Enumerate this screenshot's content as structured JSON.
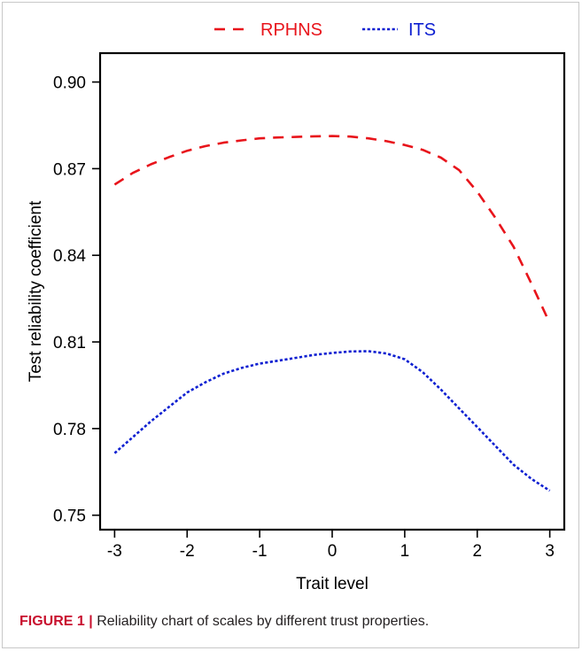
{
  "chart_data": {
    "type": "line",
    "title": "",
    "xlabel": "Trait level",
    "ylabel": "Test reliability coefficient",
    "xlim": [
      -3.2,
      3.2
    ],
    "ylim": [
      0.745,
      0.91
    ],
    "x_ticks": [
      -3,
      -2,
      -1,
      0,
      1,
      2,
      3
    ],
    "y_ticks": [
      0.75,
      0.78,
      0.81,
      0.84,
      0.87,
      0.9
    ],
    "y_tick_labels": [
      "0.75",
      "0.78",
      "0.81",
      "0.84",
      "0.87",
      "0.90"
    ],
    "grid": false,
    "legend_position": "top-center",
    "series": [
      {
        "name": "RPHNS",
        "color": "#e8141b",
        "dash": "dashed",
        "x": [
          -3.0,
          -2.75,
          -2.5,
          -2.25,
          -2.0,
          -1.75,
          -1.5,
          -1.25,
          -1.0,
          -0.75,
          -0.5,
          -0.25,
          0.0,
          0.25,
          0.5,
          0.75,
          1.0,
          1.25,
          1.5,
          1.75,
          2.0,
          2.25,
          2.5,
          2.75,
          3.0
        ],
        "y": [
          0.8645,
          0.8685,
          0.8715,
          0.874,
          0.8762,
          0.8778,
          0.879,
          0.8798,
          0.8805,
          0.8808,
          0.881,
          0.8812,
          0.8813,
          0.8811,
          0.8805,
          0.8795,
          0.8782,
          0.8765,
          0.8738,
          0.8695,
          0.862,
          0.853,
          0.843,
          0.83,
          0.8165
        ]
      },
      {
        "name": "ITS",
        "color": "#0d1fd1",
        "dash": "dotted",
        "x": [
          -3.0,
          -2.75,
          -2.5,
          -2.25,
          -2.0,
          -1.75,
          -1.5,
          -1.25,
          -1.0,
          -0.75,
          -0.5,
          -0.25,
          0.0,
          0.25,
          0.5,
          0.75,
          1.0,
          1.25,
          1.5,
          1.75,
          2.0,
          2.25,
          2.5,
          2.75,
          3.0
        ],
        "y": [
          0.7715,
          0.777,
          0.7825,
          0.7875,
          0.7925,
          0.796,
          0.799,
          0.801,
          0.8025,
          0.8035,
          0.8045,
          0.8055,
          0.8062,
          0.8067,
          0.8068,
          0.806,
          0.804,
          0.7995,
          0.7935,
          0.787,
          0.7805,
          0.774,
          0.7675,
          0.7625,
          0.7585
        ]
      }
    ]
  },
  "caption": {
    "label": "FIGURE 1",
    "separator": "|",
    "text": "Reliability chart of scales by different trust properties."
  }
}
